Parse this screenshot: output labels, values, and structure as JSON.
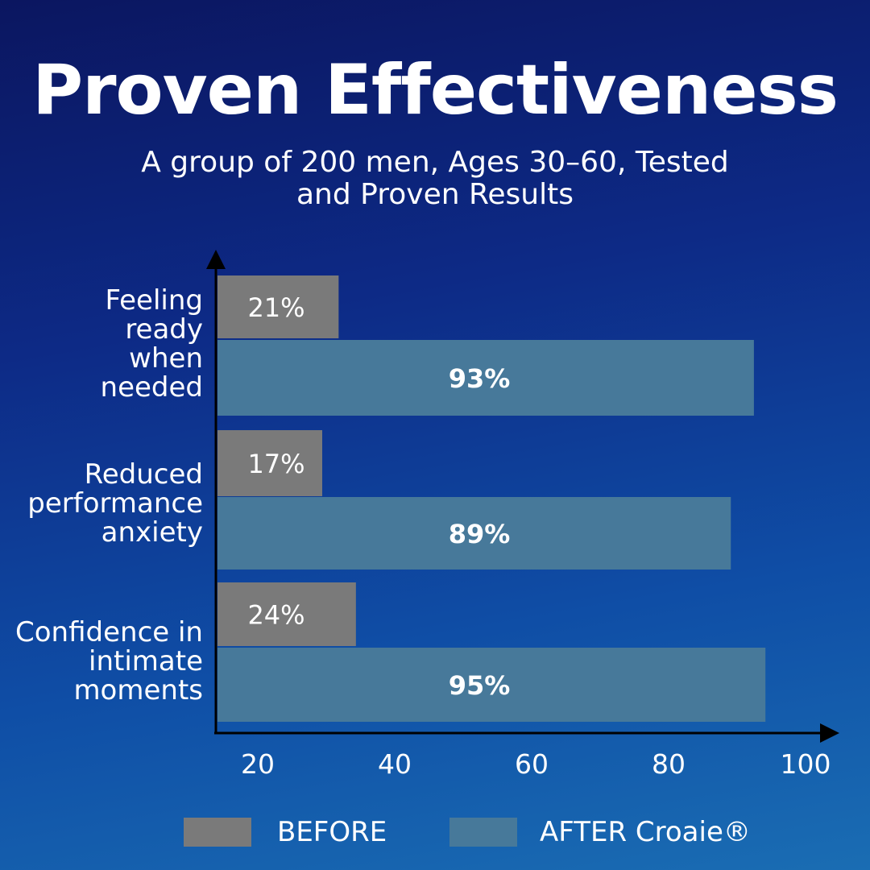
{
  "chart_data": {
    "type": "bar",
    "orientation": "horizontal",
    "title": "Proven Effectiveness",
    "subtitle": "A group of 200 men, Ages 30–60, Tested and Proven Results",
    "categories": [
      "Feeling ready when needed",
      "Reduced performance anxiety",
      "Confidence in intimate moments"
    ],
    "series": [
      {
        "name": "BEFORE",
        "values": [
          21,
          17,
          24
        ],
        "labels": [
          "21%",
          "17%",
          "24%"
        ],
        "color": "#7a7a7a"
      },
      {
        "name": "AFTER Croaie®",
        "values": [
          93,
          89,
          95
        ],
        "labels": [
          "93%",
          "89%",
          "95%"
        ],
        "color": "#47799a"
      }
    ],
    "x_ticks": [
      "20",
      "40",
      "60",
      "80",
      "100"
    ],
    "legend": "bottom",
    "grid": false
  }
}
